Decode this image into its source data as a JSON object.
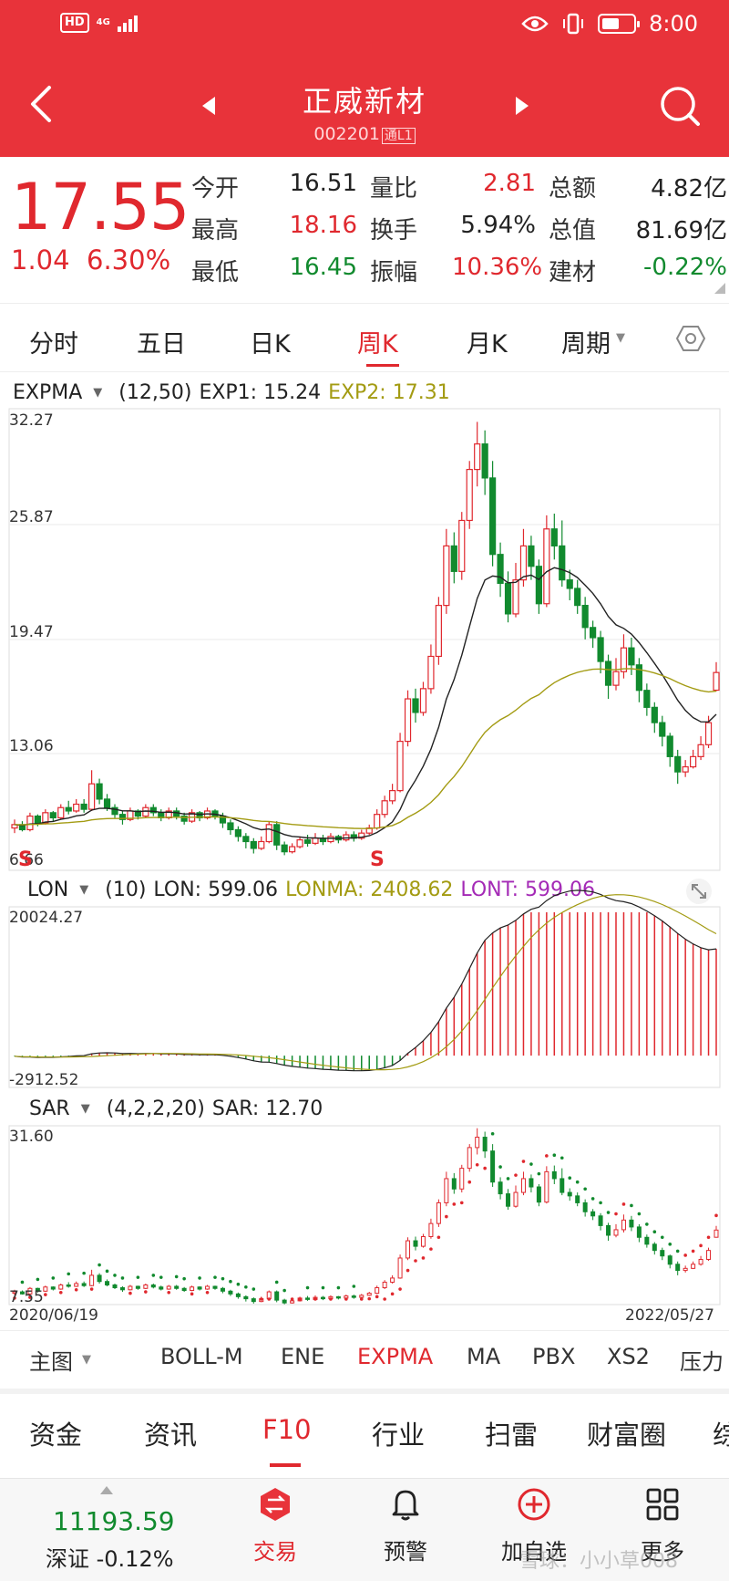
{
  "status_bar": {
    "hd": "HD",
    "network": "4G",
    "time": "8:00"
  },
  "header": {
    "title": "正威新材",
    "code": "002201",
    "tag": "通L1"
  },
  "quote": {
    "price": "17.55",
    "change": "1.04",
    "change_pct": "6.30%",
    "rows": [
      [
        {
          "label": "今开",
          "value": "16.51",
          "color": "dark"
        },
        {
          "label": "量比",
          "value": "2.81",
          "color": "red"
        },
        {
          "label": "总额",
          "value": "4.82亿",
          "color": "dark"
        }
      ],
      [
        {
          "label": "最高",
          "value": "18.16",
          "color": "red"
        },
        {
          "label": "换手",
          "value": "5.94%",
          "color": "dark"
        },
        {
          "label": "总值",
          "value": "81.69亿",
          "color": "dark"
        }
      ],
      [
        {
          "label": "最低",
          "value": "16.45",
          "color": "green"
        },
        {
          "label": "振幅",
          "value": "10.36%",
          "color": "red"
        },
        {
          "label": "建材",
          "value": "-0.22%",
          "color": "green",
          "label_color": "orange"
        }
      ]
    ]
  },
  "period_tabs": [
    "分时",
    "五日",
    "日K",
    "周K",
    "月K",
    "周期"
  ],
  "active_period": "周K",
  "expma": {
    "name": "EXPMA",
    "params": "(12,50)",
    "exp1": "EXP1: 15.24",
    "exp2": "EXP2: 17.31",
    "y_labels": [
      "32.27",
      "25.87",
      "19.47",
      "13.06",
      "6.66"
    ],
    "signal": "S"
  },
  "lon": {
    "name": "LON",
    "params": "(10)",
    "lon": "LON: 599.06",
    "lonma": "LONMA: 2408.62",
    "lont": "LONT: 599.06",
    "y_labels": [
      "20024.27",
      "-2912.52"
    ]
  },
  "sar": {
    "name": "SAR",
    "params": "(4,2,2,20)",
    "sar": "SAR: 12.70",
    "y_labels": [
      "31.60",
      "7.55"
    ],
    "date_start": "2020/06/19",
    "date_end": "2022/05/27"
  },
  "indicator_tools": [
    "主图",
    "BOLL-M",
    "ENE",
    "EXPMA",
    "MA",
    "PBX",
    "XS2",
    "压力"
  ],
  "active_tool": "EXPMA",
  "info_tabs": [
    "资金",
    "资讯",
    "F10",
    "行业",
    "扫雷",
    "财富圈",
    "综"
  ],
  "active_info": "F10",
  "bottom": {
    "index_value": "11193.59",
    "index_name": "深证 -0.12%",
    "nav": [
      "交易",
      "预警",
      "加自选",
      "更多"
    ],
    "watermark": "雪球：小小草008"
  },
  "colors": {
    "up": "#e0282e",
    "down": "#118a2e",
    "exp2": "#a39b12",
    "lont": "#a42ab6",
    "header": "#e8333a"
  },
  "chart_data": [
    {
      "type": "candlestick",
      "title": "EXPMA (12,50)",
      "ylim": [
        6.66,
        32.27
      ],
      "candles": [
        [
          8.4,
          8.6,
          8.1,
          8.9
        ],
        [
          8.6,
          8.3,
          8.2,
          8.8
        ],
        [
          8.3,
          9.1,
          8.2,
          9.3
        ],
        [
          9.1,
          8.7,
          8.5,
          9.2
        ],
        [
          8.7,
          9.3,
          8.6,
          9.5
        ],
        [
          9.3,
          9.0,
          8.8,
          9.4
        ],
        [
          9.0,
          9.6,
          8.9,
          9.8
        ],
        [
          9.6,
          9.4,
          9.2,
          10.0
        ],
        [
          9.4,
          9.8,
          9.3,
          10.1
        ],
        [
          9.8,
          9.5,
          9.3,
          10.1
        ],
        [
          9.5,
          11.0,
          9.4,
          11.8
        ],
        [
          11.0,
          10.1,
          9.8,
          11.3
        ],
        [
          10.1,
          9.6,
          9.4,
          10.4
        ],
        [
          9.6,
          9.2,
          9.0,
          9.8
        ],
        [
          9.2,
          8.9,
          8.6,
          9.4
        ],
        [
          8.9,
          9.4,
          8.8,
          9.6
        ],
        [
          9.4,
          9.1,
          8.9,
          9.5
        ],
        [
          9.1,
          9.6,
          9.0,
          9.8
        ],
        [
          9.6,
          9.3,
          9.1,
          9.8
        ],
        [
          9.3,
          9.0,
          8.8,
          9.5
        ],
        [
          9.0,
          9.4,
          8.9,
          9.6
        ],
        [
          9.4,
          9.1,
          8.9,
          9.6
        ],
        [
          9.1,
          8.8,
          8.6,
          9.3
        ],
        [
          8.8,
          9.3,
          8.7,
          9.5
        ],
        [
          9.3,
          9.0,
          8.8,
          9.4
        ],
        [
          9.0,
          9.4,
          8.9,
          9.6
        ],
        [
          9.4,
          9.1,
          8.9,
          9.5
        ],
        [
          9.1,
          8.7,
          8.4,
          9.3
        ],
        [
          8.7,
          8.3,
          8.0,
          8.9
        ],
        [
          8.3,
          7.9,
          7.6,
          8.5
        ],
        [
          7.9,
          7.6,
          7.2,
          8.1
        ],
        [
          7.6,
          7.2,
          6.9,
          7.8
        ],
        [
          7.2,
          7.6,
          7.1,
          7.9
        ],
        [
          7.6,
          8.6,
          7.5,
          8.8
        ],
        [
          8.6,
          7.4,
          7.1,
          8.8
        ],
        [
          7.4,
          7.0,
          6.8,
          7.6
        ],
        [
          7.0,
          7.3,
          6.9,
          7.5
        ],
        [
          7.3,
          7.7,
          7.2,
          7.9
        ],
        [
          7.7,
          7.5,
          7.3,
          8.0
        ],
        [
          7.5,
          7.8,
          7.4,
          8.1
        ],
        [
          7.8,
          7.6,
          7.4,
          8.0
        ],
        [
          7.6,
          7.9,
          7.5,
          8.1
        ],
        [
          7.9,
          7.7,
          7.5,
          8.0
        ],
        [
          7.7,
          8.0,
          7.6,
          8.2
        ],
        [
          8.0,
          7.8,
          7.6,
          8.2
        ],
        [
          7.8,
          8.1,
          7.7,
          8.3
        ],
        [
          8.1,
          8.4,
          8.0,
          8.6
        ],
        [
          8.4,
          9.2,
          8.3,
          9.5
        ],
        [
          9.2,
          10.0,
          9.0,
          10.3
        ],
        [
          10.0,
          10.6,
          9.8,
          11.0
        ],
        [
          10.6,
          13.5,
          10.5,
          14.0
        ],
        [
          13.5,
          16.0,
          13.2,
          16.5
        ],
        [
          16.0,
          15.2,
          14.6,
          16.6
        ],
        [
          15.2,
          16.6,
          15.0,
          17.0
        ],
        [
          16.6,
          18.5,
          16.3,
          19.2
        ],
        [
          18.5,
          21.5,
          18.0,
          22.0
        ],
        [
          21.5,
          25.0,
          21.0,
          26.0
        ],
        [
          25.0,
          23.5,
          22.8,
          25.8
        ],
        [
          23.5,
          26.5,
          23.0,
          27.0
        ],
        [
          26.5,
          29.5,
          26.0,
          30.0
        ],
        [
          29.5,
          31.0,
          28.5,
          32.3
        ],
        [
          31.0,
          29.0,
          28.0,
          31.8
        ],
        [
          29.0,
          24.5,
          23.8,
          30.0
        ],
        [
          24.5,
          22.8,
          22.0,
          25.2
        ],
        [
          22.8,
          21.0,
          20.5,
          23.5
        ],
        [
          21.0,
          23.0,
          20.8,
          24.0
        ],
        [
          23.0,
          25.0,
          22.6,
          26.0
        ],
        [
          25.0,
          23.8,
          23.0,
          25.6
        ],
        [
          23.8,
          21.6,
          21.0,
          24.2
        ],
        [
          21.6,
          26.0,
          21.4,
          26.8
        ],
        [
          26.0,
          25.0,
          24.2,
          26.9
        ],
        [
          25.0,
          23.0,
          22.6,
          26.5
        ],
        [
          23.0,
          22.5,
          21.8,
          23.6
        ],
        [
          22.5,
          21.5,
          21.0,
          23.0
        ],
        [
          21.5,
          20.2,
          19.5,
          22.0
        ],
        [
          20.2,
          19.6,
          19.0,
          20.6
        ],
        [
          19.6,
          18.2,
          17.5,
          20.0
        ],
        [
          18.2,
          16.8,
          16.0,
          18.6
        ],
        [
          16.8,
          17.6,
          16.5,
          18.4
        ],
        [
          17.6,
          19.0,
          17.2,
          19.8
        ],
        [
          19.0,
          18.0,
          17.4,
          19.6
        ],
        [
          18.0,
          16.5,
          15.8,
          18.4
        ],
        [
          16.5,
          15.5,
          15.0,
          16.9
        ],
        [
          15.5,
          14.6,
          14.0,
          15.8
        ],
        [
          14.6,
          13.8,
          13.2,
          15.0
        ],
        [
          13.8,
          12.6,
          12.0,
          14.0
        ],
        [
          12.6,
          11.7,
          11.0,
          13.0
        ],
        [
          11.7,
          12.0,
          11.4,
          12.4
        ],
        [
          12.0,
          12.6,
          11.9,
          13.0
        ],
        [
          12.6,
          13.3,
          12.4,
          13.8
        ],
        [
          13.3,
          14.6,
          13.1,
          15.0
        ],
        [
          16.51,
          17.55,
          16.45,
          18.16
        ]
      ],
      "series": [
        {
          "name": "EXP1",
          "last": 15.24
        },
        {
          "name": "EXP2",
          "last": 17.31
        }
      ]
    },
    {
      "type": "bar",
      "title": "LON (10)",
      "ylim": [
        -2912.52,
        20024.27
      ],
      "series": [
        {
          "name": "LON",
          "last": 599.06
        },
        {
          "name": "LONMA",
          "last": 2408.62
        },
        {
          "name": "LONT",
          "last": 599.06
        }
      ]
    },
    {
      "type": "scatter",
      "title": "SAR (4,2,2,20)",
      "ylim": [
        7.55,
        31.6
      ],
      "x_range": [
        "2020/06/19",
        "2022/05/27"
      ],
      "series": [
        {
          "name": "SAR",
          "last": 12.7
        }
      ]
    }
  ]
}
